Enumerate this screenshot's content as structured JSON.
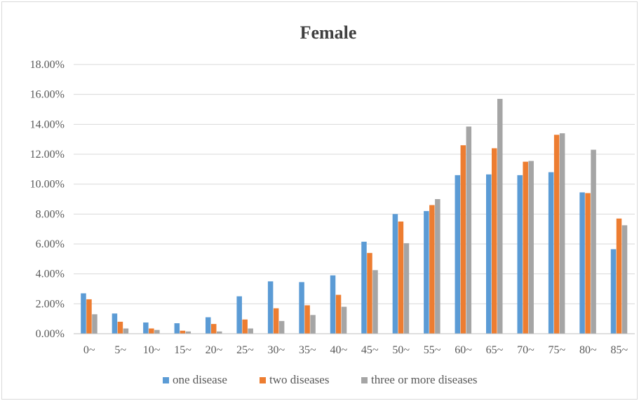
{
  "chart_data": {
    "type": "bar",
    "title": "Female",
    "xlabel": "",
    "ylabel": "",
    "ylim": [
      0,
      18
    ],
    "yticks": [
      0,
      2,
      4,
      6,
      8,
      10,
      12,
      14,
      16,
      18
    ],
    "ytick_labels": [
      "0.00%",
      "2.00%",
      "4.00%",
      "6.00%",
      "8.00%",
      "10.00%",
      "12.00%",
      "14.00%",
      "16.00%",
      "18.00%"
    ],
    "grid": true,
    "legend_position": "bottom",
    "categories": [
      "0~",
      "5~",
      "10~",
      "15~",
      "20~",
      "25~",
      "30~",
      "35~",
      "40~",
      "45~",
      "50~",
      "55~",
      "60~",
      "65~",
      "70~",
      "75~",
      "80~",
      "85~"
    ],
    "series": [
      {
        "name": "one disease",
        "color": "#5b9bd5",
        "values": [
          2.7,
          1.35,
          0.75,
          0.7,
          1.1,
          2.5,
          3.5,
          3.45,
          3.9,
          6.15,
          8.0,
          8.2,
          10.6,
          10.65,
          10.6,
          10.8,
          9.45,
          5.65
        ]
      },
      {
        "name": "two diseases",
        "color": "#ed7d31",
        "values": [
          2.3,
          0.8,
          0.35,
          0.2,
          0.65,
          0.95,
          1.7,
          1.9,
          2.6,
          5.4,
          7.5,
          8.6,
          12.6,
          12.4,
          11.5,
          13.3,
          9.4,
          7.7
        ]
      },
      {
        "name": "three or more diseases",
        "color": "#a5a5a5",
        "values": [
          1.3,
          0.35,
          0.25,
          0.15,
          0.15,
          0.35,
          0.85,
          1.25,
          1.8,
          4.25,
          6.05,
          9.0,
          13.85,
          15.7,
          11.55,
          13.4,
          12.3,
          7.25
        ]
      }
    ]
  }
}
